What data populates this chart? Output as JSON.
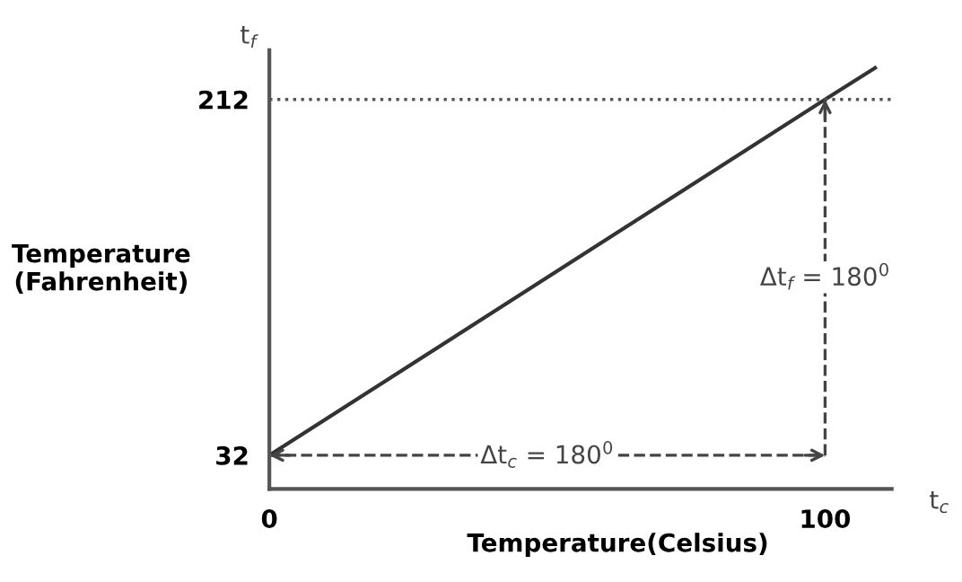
{
  "chart_data": {
    "type": "line",
    "xlabel": "Temperature(Celsius)",
    "ylabel": "Temperature\n(Fahrenheit)",
    "x": [
      0,
      100,
      109
    ],
    "series": [
      {
        "color": "#333333",
        "values": [
          32,
          212,
          228
        ]
      }
    ],
    "xlim": [
      0,
      112
    ],
    "ylim": [
      15,
      237
    ],
    "xticks": [
      0,
      100
    ],
    "yticks": [
      32,
      212
    ],
    "ref_lines": [
      {
        "axis": "y",
        "value": 212,
        "label": null,
        "line_style": "dotted",
        "color": "#555555"
      },
      {
        "axis": "y",
        "value": 32,
        "label": null,
        "line_style": "dashed",
        "color": "#444444"
      },
      {
        "axis": "x",
        "value": 100,
        "label": null,
        "line_style": "dashed",
        "color": "#444444"
      }
    ],
    "annotations": [
      "t$_{f}$",
      "t$_{c}$",
      "Δt$_{c}$ = 180$^{0}$",
      "Δt$_{f}$ = 180$^{0}$"
    ],
    "grid": false,
    "legend": false,
    "marker": "none",
    "line_style": "solid"
  }
}
